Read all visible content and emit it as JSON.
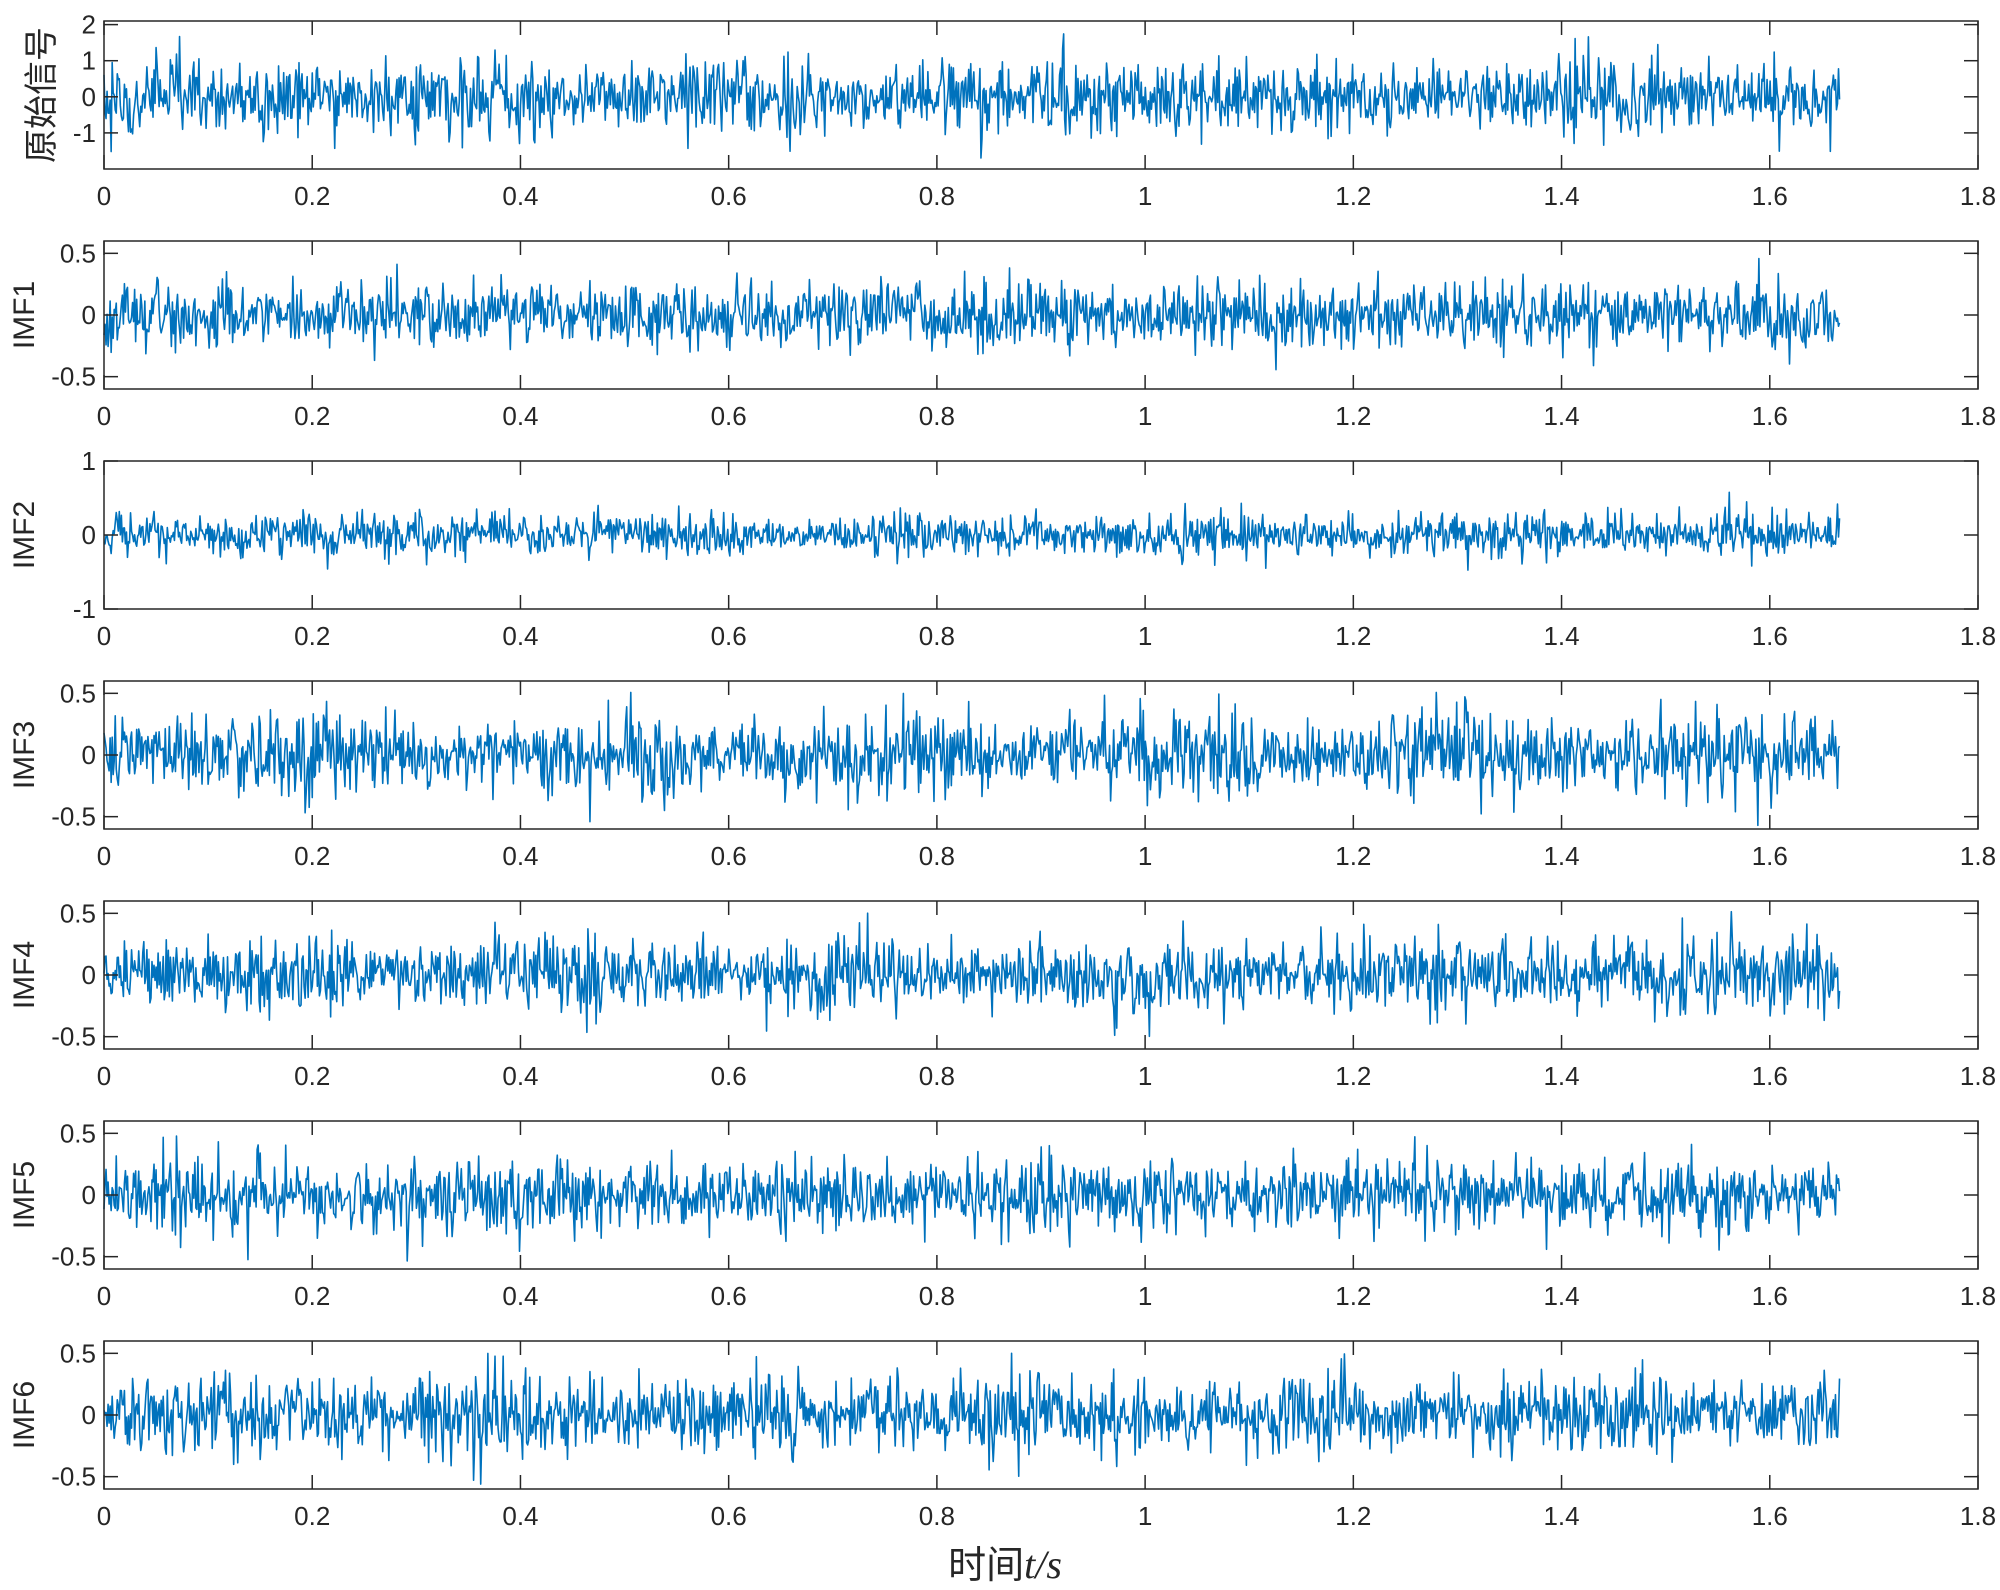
{
  "chart_data": {
    "type": "line",
    "layout": "stacked-subplots",
    "xlim": [
      0,
      1.8
    ],
    "x_ticks": [
      0,
      0.2,
      0.4,
      0.6,
      0.8,
      1,
      1.2,
      1.4,
      1.6,
      1.8
    ],
    "x_tick_labels": [
      "0",
      "0.2",
      "0.4",
      "0.6",
      "0.8",
      "1",
      "1.2",
      "1.4",
      "1.6",
      "1.8"
    ],
    "signal_duration": 1.667,
    "series_color": "#0072BD",
    "xlabel": {
      "prefix": "时间",
      "expr": "t/s"
    },
    "subplots": [
      {
        "ylabel": "原始信号",
        "ylim": [
          -2,
          2.1
        ],
        "y_ticks": [
          -1,
          0,
          1,
          2
        ],
        "y_tick_labels": [
          "-1",
          "0",
          "1",
          "2"
        ],
        "typical_amplitude": 1.1,
        "peak_amplitude": 2.0
      },
      {
        "ylabel": "IMF1",
        "ylim": [
          -0.6,
          0.6
        ],
        "y_ticks": [
          -0.5,
          0,
          0.5
        ],
        "y_tick_labels": [
          "-0.5",
          "0",
          "0.5"
        ],
        "typical_amplitude": 0.3,
        "peak_amplitude": 0.58
      },
      {
        "ylabel": "IMF2",
        "ylim": [
          -1,
          1
        ],
        "y_ticks": [
          -1,
          0,
          1
        ],
        "y_tick_labels": [
          "-1",
          "0",
          "1"
        ],
        "typical_amplitude": 0.3,
        "peak_amplitude": 0.6
      },
      {
        "ylabel": "IMF3",
        "ylim": [
          -0.6,
          0.6
        ],
        "y_ticks": [
          -0.5,
          0,
          0.5
        ],
        "y_tick_labels": [
          "-0.5",
          "0",
          "0.5"
        ],
        "typical_amplitude": 0.35,
        "peak_amplitude": 0.6
      },
      {
        "ylabel": "IMF4",
        "ylim": [
          -0.6,
          0.6
        ],
        "y_ticks": [
          -0.5,
          0,
          0.5
        ],
        "y_tick_labels": [
          "-0.5",
          "0",
          "0.5"
        ],
        "typical_amplitude": 0.32,
        "peak_amplitude": 0.58
      },
      {
        "ylabel": "IMF5",
        "ylim": [
          -0.6,
          0.6
        ],
        "y_ticks": [
          -0.5,
          0,
          0.5
        ],
        "y_tick_labels": [
          "-0.5",
          "0",
          "0.5"
        ],
        "typical_amplitude": 0.32,
        "peak_amplitude": 0.56
      },
      {
        "ylabel": "IMF6",
        "ylim": [
          -0.6,
          0.6
        ],
        "y_ticks": [
          -0.5,
          0,
          0.5
        ],
        "y_tick_labels": [
          "-0.5",
          "0",
          "0.5"
        ],
        "typical_amplitude": 0.33,
        "peak_amplitude": 0.56
      }
    ]
  }
}
